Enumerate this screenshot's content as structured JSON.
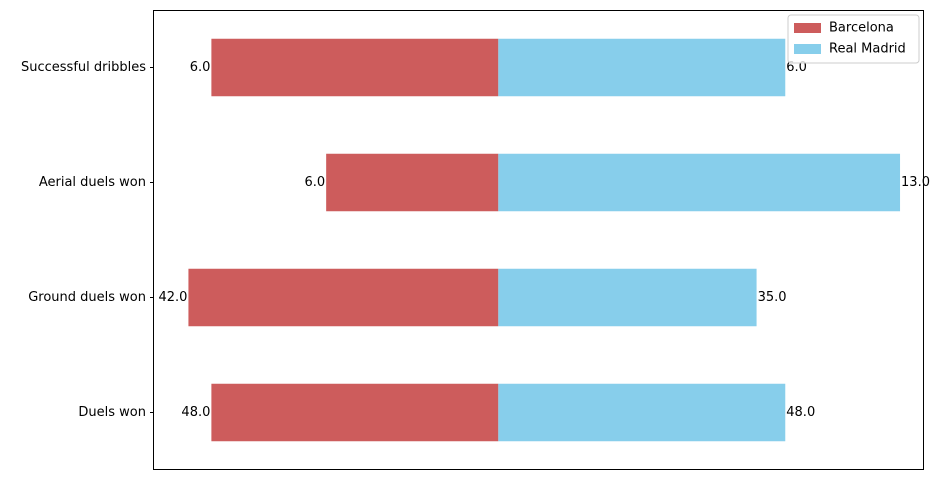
{
  "chart_data": {
    "type": "bar",
    "orientation": "horizontal",
    "layout": "diverging",
    "categories": [
      "Successful dribbles",
      "Aerial duels won",
      "Ground duels won",
      "Duels won"
    ],
    "series": [
      {
        "name": "Barcelona",
        "color": "#cd5c5c",
        "values": [
          0.5,
          0.3,
          0.54,
          0.5
        ],
        "labels": [
          "6.0",
          "6.0",
          "42.0",
          "48.0"
        ]
      },
      {
        "name": "Real Madrid",
        "color": "#87ceeb",
        "values": [
          0.5,
          0.7,
          0.45,
          0.5
        ],
        "labels": [
          "6.0",
          "13.0",
          "35.0",
          "48.0"
        ]
      }
    ],
    "xlim": [
      -0.6,
      0.74
    ],
    "x_axis_visible": false,
    "grid": false,
    "legend": "top-right"
  }
}
